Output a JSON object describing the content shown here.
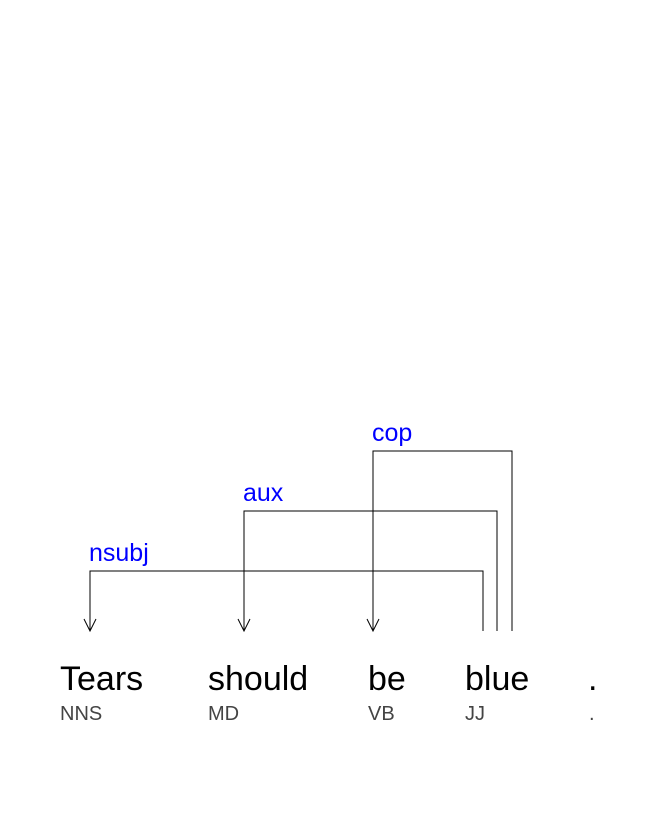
{
  "tokens": [
    {
      "word": "Tears",
      "tag": "NNS"
    },
    {
      "word": "should",
      "tag": "MD"
    },
    {
      "word": "be",
      "tag": "VB"
    },
    {
      "word": "blue",
      "tag": "JJ"
    },
    {
      "word": ".",
      "tag": "."
    }
  ],
  "arcs": [
    {
      "label": "cop",
      "head": 3,
      "dependent": 2
    },
    {
      "label": "aux",
      "head": 3,
      "dependent": 1
    },
    {
      "label": "nsubj",
      "head": 3,
      "dependent": 0
    }
  ],
  "colors": {
    "label": "#0000ff",
    "word": "#000000",
    "tag": "#444444",
    "line": "#000000"
  }
}
